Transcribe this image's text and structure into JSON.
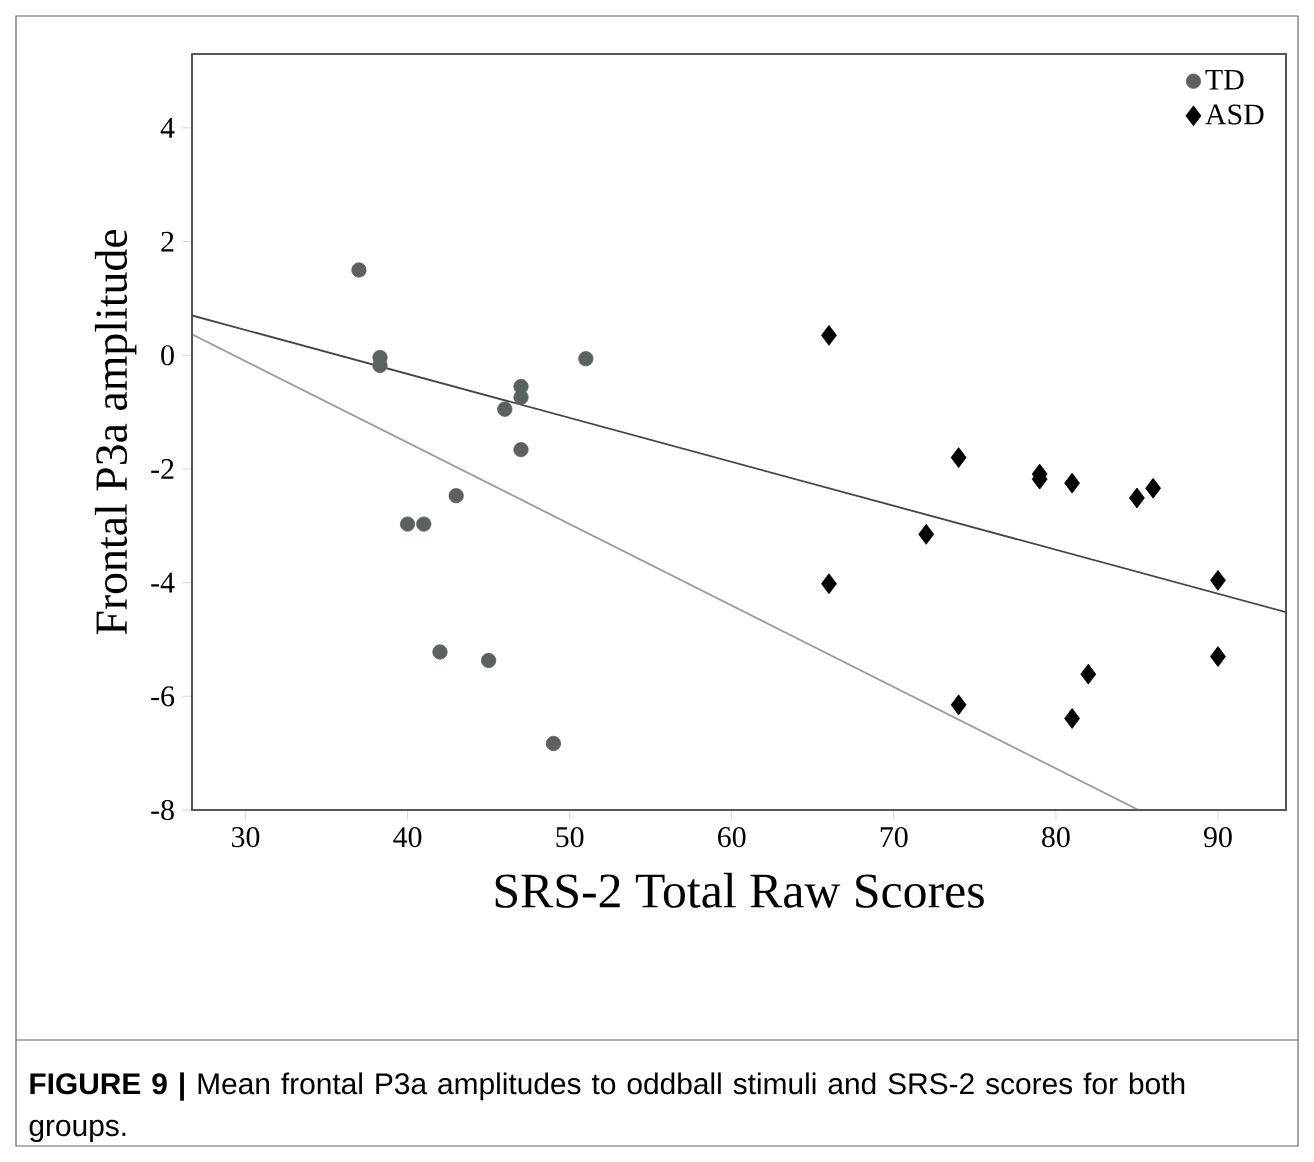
{
  "chart_data": {
    "type": "scatter",
    "xlabel": "SRS-2 Total Raw Scores",
    "ylabel": "Frontal P3a amplitude",
    "xlim": [
      26.7,
      94.2
    ],
    "ylim": [
      -8,
      5.3
    ],
    "xticks": [
      30,
      40,
      50,
      60,
      70,
      80,
      90
    ],
    "yticks": [
      -8,
      -6,
      -4,
      -2,
      0,
      2,
      4
    ],
    "grid": false,
    "legend": "top right",
    "series": [
      {
        "name": "TD",
        "type": "scatter",
        "marker": "circle",
        "color": "#5b625e",
        "x": [
          37,
          38.3,
          38.3,
          40,
          41,
          43,
          42,
          45,
          46,
          47,
          47,
          47,
          51,
          49
        ],
        "values": [
          1.5,
          -0.04,
          -0.18,
          -2.97,
          -2.97,
          -2.47,
          -5.22,
          -5.37,
          -0.95,
          -0.55,
          -0.74,
          -1.66,
          -0.06,
          -6.83
        ]
      },
      {
        "name": "ASD",
        "type": "scatter",
        "marker": "diamond",
        "color": "#000000",
        "x": [
          66,
          74,
          79,
          79,
          81,
          85,
          86,
          72,
          66,
          90,
          90,
          82,
          74,
          81
        ],
        "values": [
          0.35,
          -1.8,
          -2.09,
          -2.18,
          -2.25,
          -2.51,
          -2.34,
          -3.15,
          -4.02,
          -3.96,
          -5.3,
          -5.61,
          -6.15,
          -6.39
        ]
      },
      {
        "type": "line",
        "line_style": "solid",
        "color": "#9a9a9a",
        "x": [
          26.7,
          85.1
        ],
        "values": [
          0.37,
          -8
        ]
      },
      {
        "type": "line",
        "line_style": "solid",
        "color": "#444444",
        "x": [
          26.7,
          94.2
        ],
        "values": [
          0.7,
          -4.52
        ]
      }
    ],
    "annotations": [
      "**FIGURE 9 |** Mean frontal P3a amplitudes to oddball stimuli and SRS-2 scores for both groups."
    ]
  }
}
